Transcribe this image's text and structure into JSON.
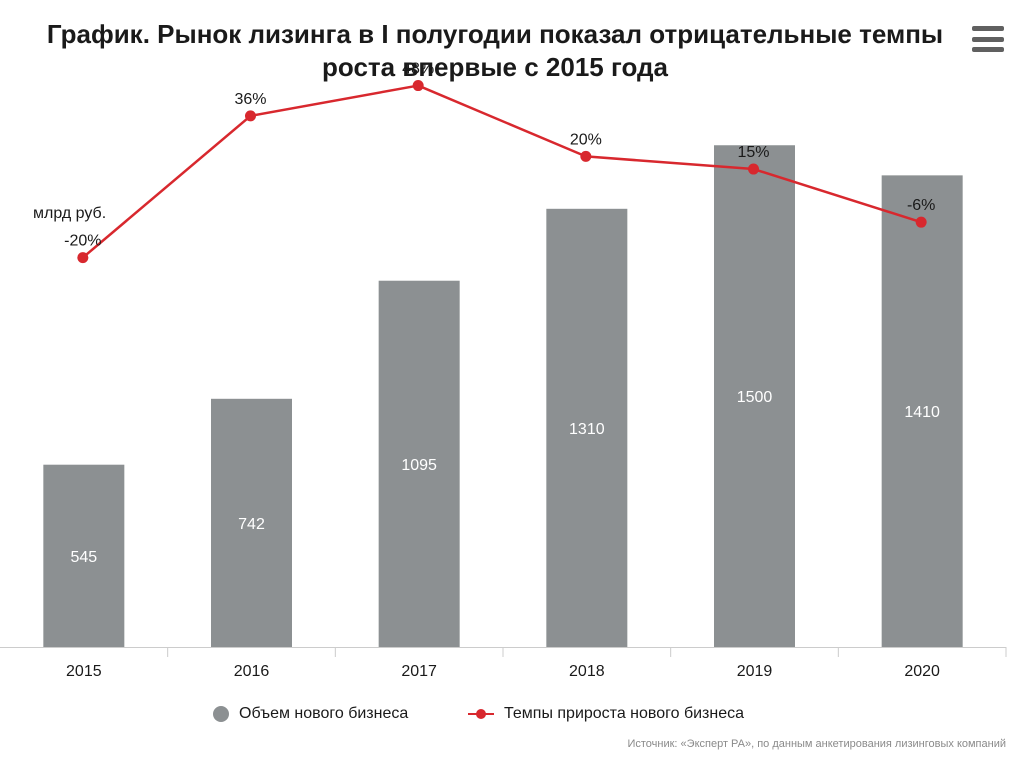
{
  "title": "График. Рынок лизинга в I полугодии показал отрицательные темпы роста впервые с 2015 года",
  "unit_label": "млрд руб.",
  "source": "Источник: «Эксперт РА», по данным анкетирования лизинговых компаний",
  "colors": {
    "bars": "#8c9092",
    "line": "#d8282e",
    "axis": "#cccccc"
  },
  "chart_data": {
    "type": "bar+line",
    "categories": [
      "2015",
      "2016",
      "2017",
      "2018",
      "2019",
      "2020"
    ],
    "series": [
      {
        "name": "Объем нового бизнеса",
        "type": "bar",
        "values": [
          545,
          742,
          1095,
          1310,
          1500,
          1410
        ],
        "labels": [
          "545",
          "742",
          "1095",
          "1310",
          "1500",
          "1410"
        ]
      },
      {
        "name": "Темпы прироста нового бизнеса",
        "type": "line",
        "values": [
          -20,
          36,
          48,
          20,
          15,
          -6
        ],
        "labels": [
          "-20%",
          "36%",
          "48%",
          "20%",
          "15%",
          "-6%"
        ]
      }
    ],
    "bar_ylim": [
      0,
      1850
    ],
    "line_ylim": [
      -85,
      78
    ],
    "grid": false,
    "legend": "bottom"
  }
}
